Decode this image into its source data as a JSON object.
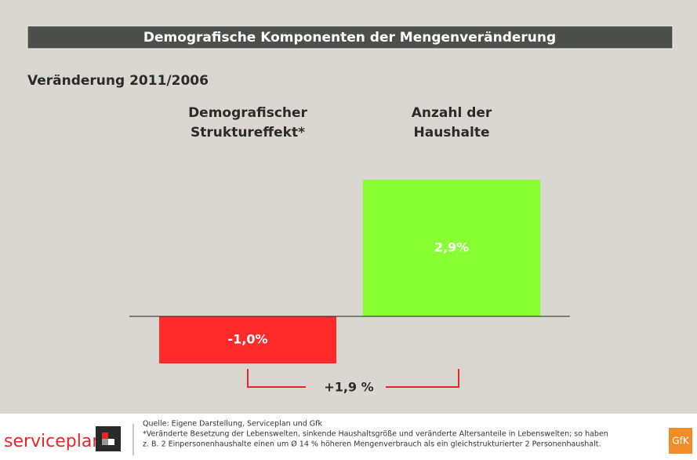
{
  "chart_data": {
    "type": "bar",
    "title": "Demografische Komponenten der Mengenveränderung",
    "subtitle": "Veränderung 2011/2006",
    "categories": [
      "Demografischer\nStruktureffekt*",
      "Anzahl der\nHaushalte"
    ],
    "values": [
      -1.0,
      2.9
    ],
    "value_labels": [
      "-1,0%",
      "2,9%"
    ],
    "colors": [
      "#ff2a2a",
      "#88ff33"
    ],
    "annotation": "+1,9 %",
    "source": "Quelle: Eigene Darstellung, Serviceplan und Gfk",
    "footnote": [
      "*Veränderte Besetzung der Lebenswelten, sinkende Haushaltsgröße und veränderte Altersanteile in Lebenswelten; so haben",
      "z. B. 2 Einpersonenhaushalte einen um Ø 14 % höheren Mengenverbrauch als ein gleichstrukturierter 2 Personenhaushalt."
    ],
    "logo_left": "serviceplan",
    "logo_right": "GfK"
  }
}
